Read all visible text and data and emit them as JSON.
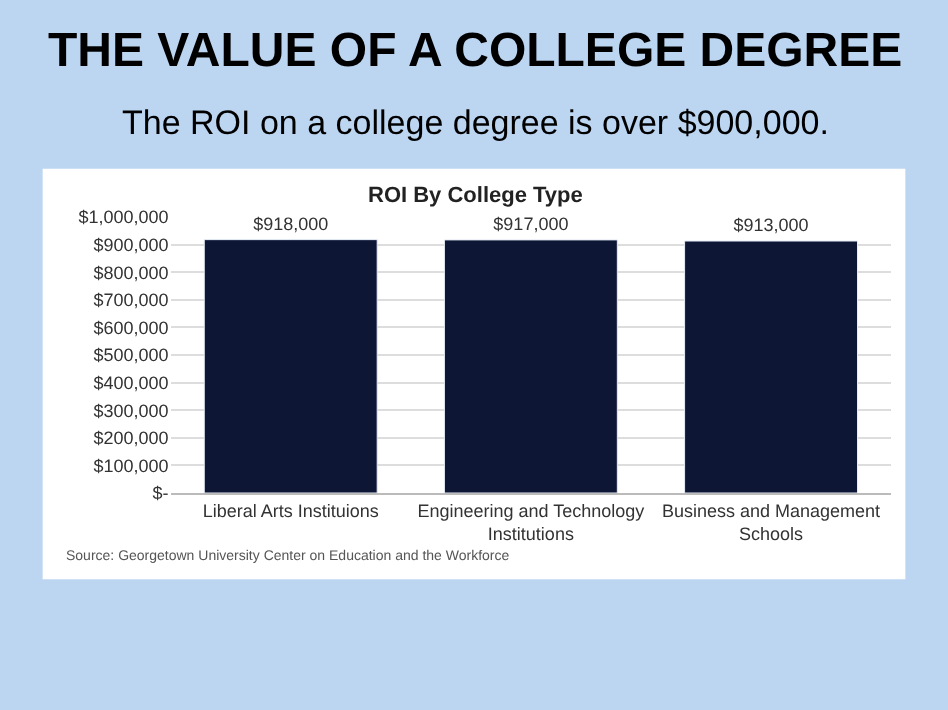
{
  "chart_data": {
    "type": "bar",
    "title": "THE VALUE OF A COLLEGE DEGREE",
    "subtitle": "The ROI on a college degree is over $900,000.",
    "annotations": [
      "ROI By College Type",
      "Source: Georgetown University Center on Education and the Workforce"
    ],
    "categories": [
      "Liberal Arts Instituions",
      "Engineering and Technology Institutions",
      "Business and Management Schools"
    ],
    "values": [
      918000,
      917000,
      913000
    ],
    "value_labels": [
      "$918,000",
      "$917,000",
      "$913,000"
    ],
    "color": "#0e1636",
    "ylim": [
      0,
      1000000
    ],
    "yticks": [
      {
        "value": 0,
        "label": "$-"
      },
      {
        "value": 100000,
        "label": "$100,000"
      },
      {
        "value": 200000,
        "label": "$200,000"
      },
      {
        "value": 300000,
        "label": "$300,000"
      },
      {
        "value": 400000,
        "label": "$400,000"
      },
      {
        "value": 500000,
        "label": "$500,000"
      },
      {
        "value": 600000,
        "label": "$600,000"
      },
      {
        "value": 700000,
        "label": "$700,000"
      },
      {
        "value": 800000,
        "label": "$800,000"
      },
      {
        "value": 900000,
        "label": "$900,000"
      },
      {
        "value": 1000000,
        "label": "$1,000,000"
      }
    ],
    "grid": "y",
    "legend": false
  }
}
